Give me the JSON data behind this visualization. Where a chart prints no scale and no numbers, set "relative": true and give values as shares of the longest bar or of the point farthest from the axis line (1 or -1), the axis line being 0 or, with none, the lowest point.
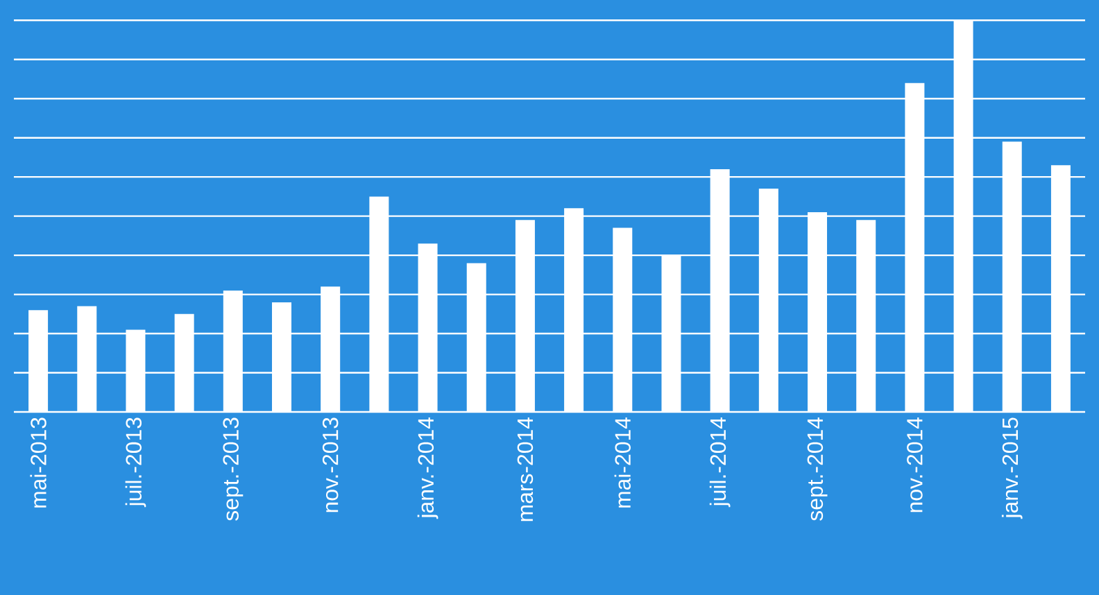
{
  "chart_data": {
    "type": "bar",
    "relative": true,
    "grid": "y",
    "color": "#ffffff",
    "categories": [
      "mai-2013",
      null,
      "juil.-2013",
      null,
      "sept.-2013",
      null,
      "nov.-2013",
      null,
      "janv.-2014",
      null,
      "mars-2014",
      null,
      "mai-2014",
      null,
      "juil.-2014",
      null,
      "sept.-2014",
      null,
      "nov.-2014",
      null,
      "janv.-2015",
      null
    ],
    "values": [
      0.26,
      0.27,
      0.21,
      0.25,
      0.31,
      0.28,
      0.32,
      0.55,
      0.43,
      0.38,
      0.49,
      0.52,
      0.47,
      0.4,
      0.62,
      0.57,
      0.51,
      0.49,
      0.84,
      1,
      0.69,
      0.63
    ]
  }
}
